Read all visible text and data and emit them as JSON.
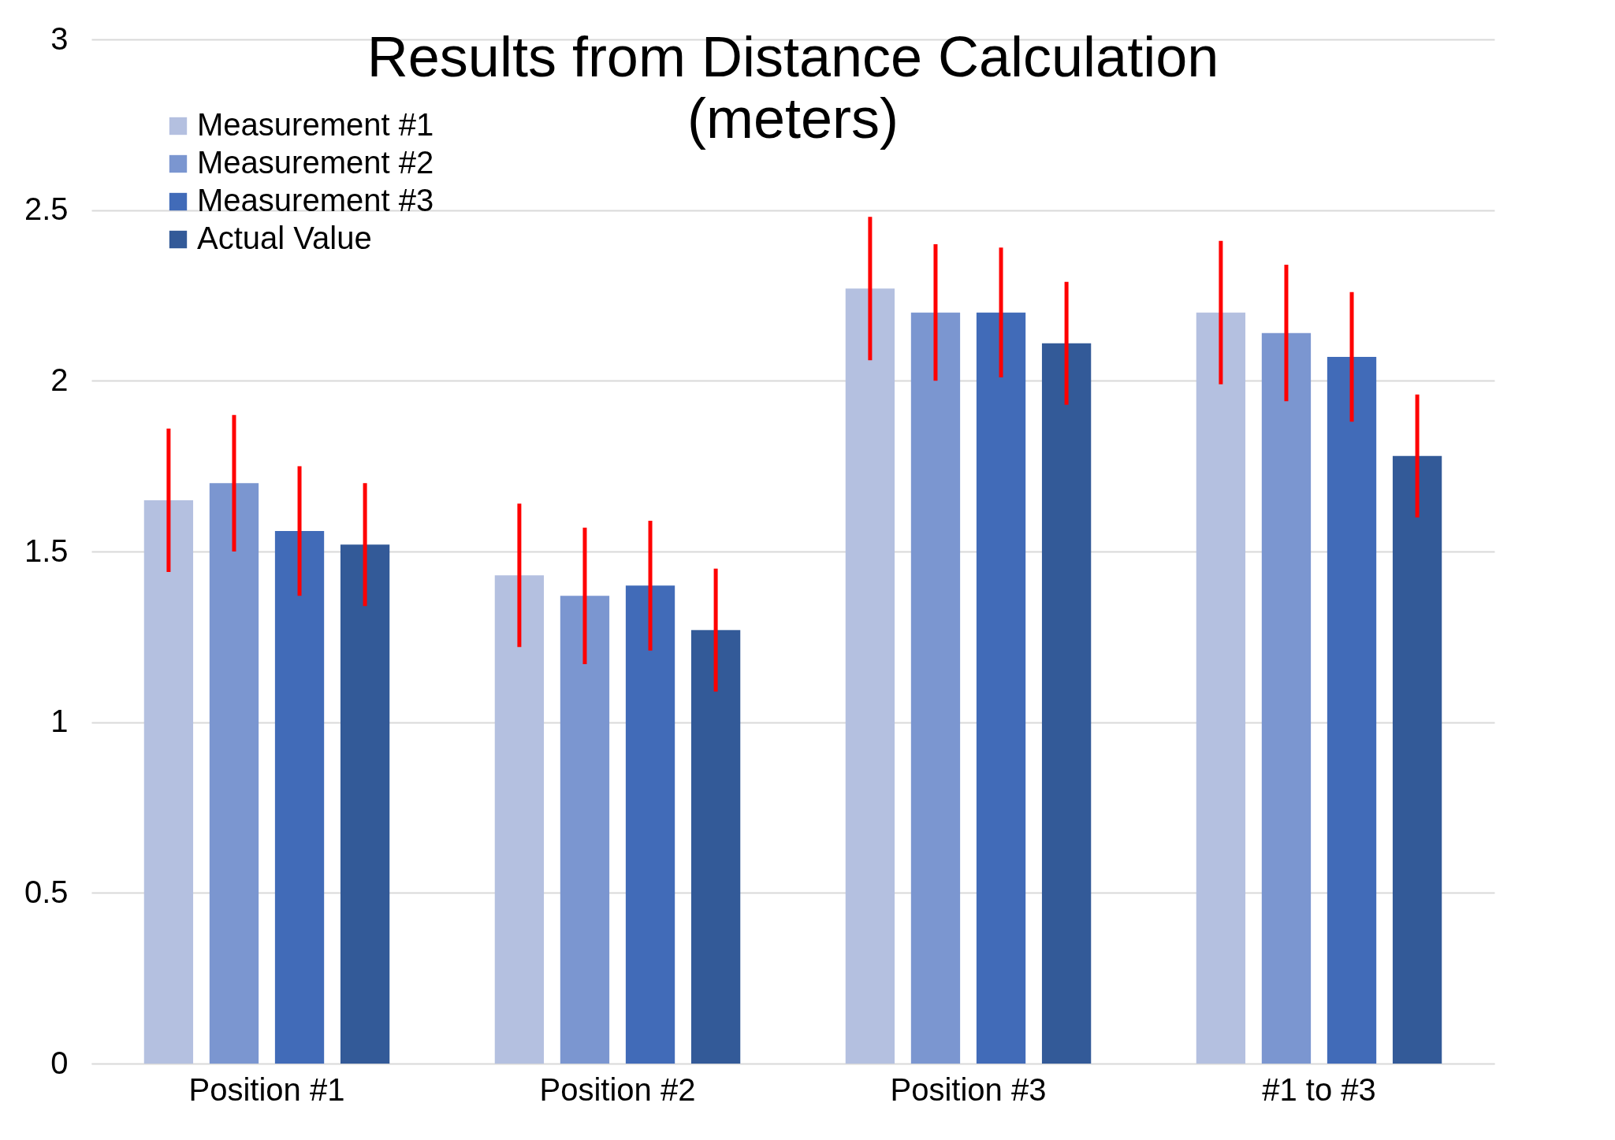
{
  "chart_data": {
    "type": "bar",
    "title": "Results from Distance Calculation\n(meters)",
    "categories": [
      "Position #1",
      "Position #2",
      "Position #3",
      "#1 to #3"
    ],
    "series": [
      {
        "name": "Measurement #1",
        "color": "#b4c0e0",
        "values": [
          1.65,
          1.43,
          2.27,
          2.2
        ],
        "errors": [
          0.21,
          0.21,
          0.21,
          0.21
        ]
      },
      {
        "name": "Measurement #2",
        "color": "#7b96d0",
        "values": [
          1.7,
          1.37,
          2.2,
          2.14
        ],
        "errors": [
          0.2,
          0.2,
          0.2,
          0.2
        ]
      },
      {
        "name": "Measurement #3",
        "color": "#416bb8",
        "values": [
          1.56,
          1.4,
          2.2,
          2.07
        ],
        "errors": [
          0.19,
          0.19,
          0.19,
          0.19
        ]
      },
      {
        "name": "Actual Value",
        "color": "#335a98",
        "values": [
          1.52,
          1.27,
          2.11,
          1.78
        ],
        "errors": [
          0.18,
          0.18,
          0.18,
          0.18
        ]
      }
    ],
    "ylim": [
      0,
      3
    ],
    "yticks": [
      0,
      0.5,
      1,
      1.5,
      2,
      2.5,
      3
    ],
    "grid": "y",
    "legend": "top left"
  }
}
